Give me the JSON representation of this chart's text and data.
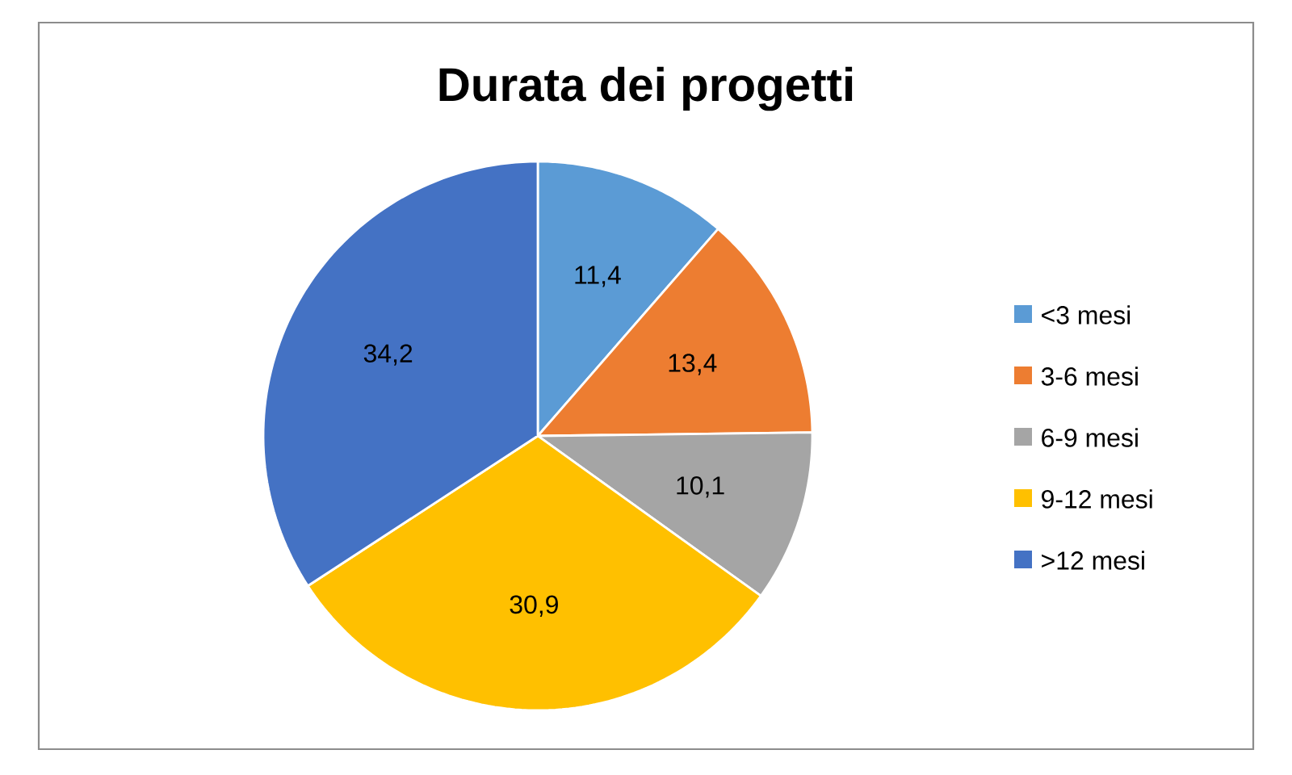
{
  "chart_data": {
    "type": "pie",
    "title": "Durata dei progetti",
    "categories": [
      "<3 mesi",
      "3-6 mesi",
      "6-9 mesi",
      "9-12 mesi",
      ">12 mesi"
    ],
    "values": [
      11.4,
      13.4,
      10.1,
      30.9,
      34.2
    ],
    "value_labels": [
      "11,4",
      "13,4",
      "10,1",
      "30,9",
      "34,2"
    ],
    "colors": [
      "#5b9bd5",
      "#ed7d31",
      "#a5a5a5",
      "#ffc000",
      "#4472c4"
    ],
    "legend": "right"
  }
}
